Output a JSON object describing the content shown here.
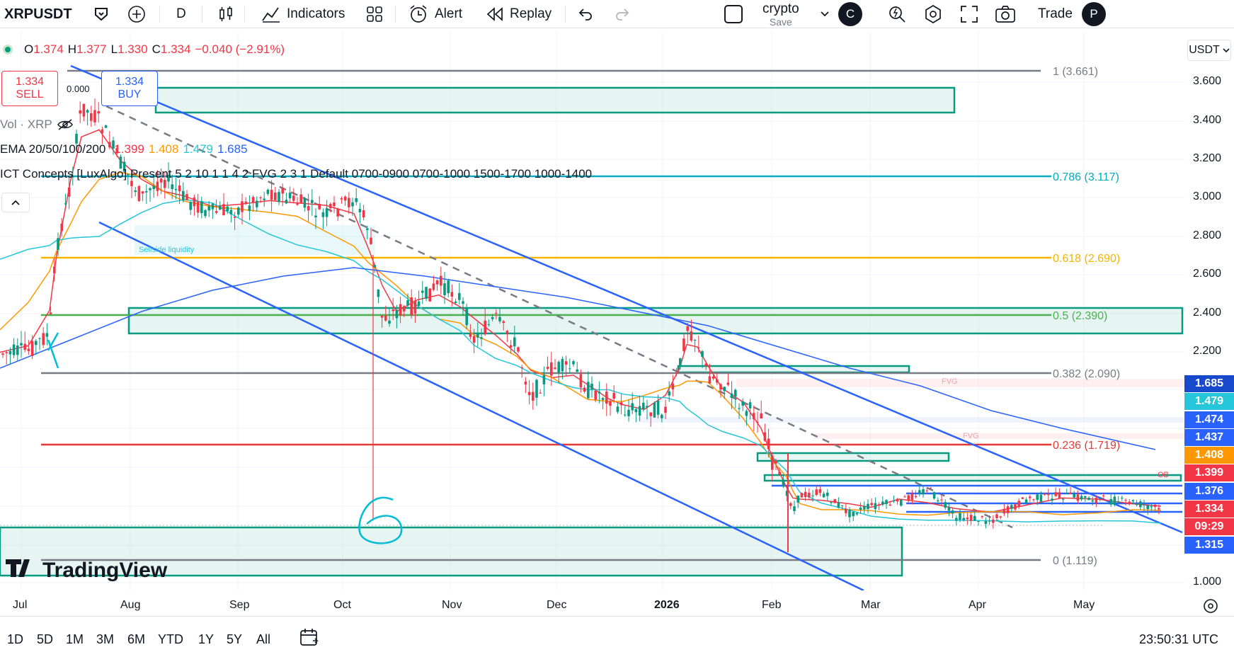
{
  "toolbar": {
    "symbol": "XRPUSDT",
    "interval": "D",
    "indicators_label": "Indicators",
    "alert_label": "Alert",
    "replay_label": "Replay",
    "layout_name": "crypto",
    "save_label": "Save",
    "profile_initial": "C",
    "trade_label": "Trade",
    "partial_label": "P"
  },
  "legend": {
    "ohlc": {
      "o_label": "O",
      "o": "1.374",
      "h_label": "H",
      "h": "1.377",
      "l_label": "L",
      "l": "1.330",
      "c_label": "C",
      "c": "1.334",
      "change": "−0.040 (−2.91%)"
    },
    "sell_price": "1.334",
    "sell_label": "SELL",
    "buy_price": "1.334",
    "buy_label": "BUY",
    "spread": "0.000",
    "vol_label": "Vol · XRP",
    "ema_label": "EMA 20/50/100/200",
    "ema_values": [
      "1.399",
      "1.408",
      "1.479",
      "1.685"
    ],
    "ema_colors": [
      "#f23645",
      "#ff9800",
      "#26c6da",
      "#2962ff"
    ],
    "ict_label": "ICT Concepts [LuxAlgo] Present 5 2 10 1 1 4 2 FVG 2 3 1 Default 0700-0900 0700-1000 1500-1700 1000-1400",
    "collapse_icon": "chevron-up-icon"
  },
  "fib_labels": [
    {
      "text": "1 (3.661)",
      "color": "#787b86"
    },
    {
      "text": "0.786 (3.117)",
      "color": "#00acc1"
    },
    {
      "text": "0.618 (2.690)",
      "color": "#f5b400"
    },
    {
      "text": "0.5 (2.390)",
      "color": "#4caf50"
    },
    {
      "text": "0.382 (2.090)",
      "color": "#787b86"
    },
    {
      "text": "0.236 (1.719)",
      "color": "#e53935"
    },
    {
      "text": "0 (1.119)",
      "color": "#787b86"
    }
  ],
  "chart_annotations": {
    "sellside_liquidity": "Sellside liquidity",
    "fvg_1": "FVG",
    "fvg_2": "FVG",
    "ob": "OB",
    "watermark": "TradingView",
    "hand_number": "6"
  },
  "price_axis": {
    "currency": "USDT",
    "ticks": [
      "3.600",
      "3.400",
      "3.200",
      "3.000",
      "2.800",
      "2.600",
      "2.400",
      "2.200",
      "1.000"
    ],
    "tags": [
      {
        "value": "1.685",
        "bg": "#1848cc"
      },
      {
        "value": "1.479",
        "bg": "#26c6da"
      },
      {
        "value": "1.474",
        "bg": "#2962ff"
      },
      {
        "value": "1.437",
        "bg": "#2962ff"
      },
      {
        "value": "1.408",
        "bg": "#ff9800"
      },
      {
        "value": "1.399",
        "bg": "#f23645"
      },
      {
        "value": "1.376",
        "bg": "#2962ff"
      },
      {
        "value": "1.334",
        "bg": "#f23645"
      },
      {
        "value": "09:29",
        "bg": "#f23645"
      },
      {
        "value": "1.315",
        "bg": "#2962ff"
      }
    ]
  },
  "time_axis": [
    "Jul",
    "Aug",
    "Sep",
    "Oct",
    "Nov",
    "Dec",
    "2026",
    "Feb",
    "Mar",
    "Apr",
    "May"
  ],
  "bottom_bar": {
    "ranges": [
      "1D",
      "5D",
      "1M",
      "3M",
      "6M",
      "YTD",
      "1Y",
      "5Y",
      "All"
    ],
    "clock": "23:50:31 UTC"
  },
  "colors": {
    "up": "#089981",
    "down": "#f23645",
    "channel": "#2962ff",
    "zone": "#089981"
  }
}
